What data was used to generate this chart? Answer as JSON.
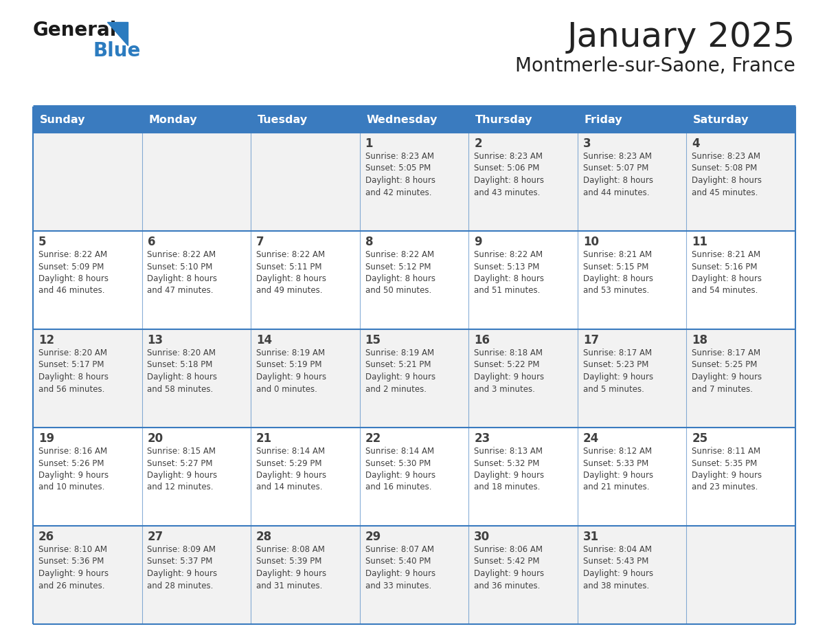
{
  "title": "January 2025",
  "subtitle": "Montmerle-sur-Saone, France",
  "days_of_week": [
    "Sunday",
    "Monday",
    "Tuesday",
    "Wednesday",
    "Thursday",
    "Friday",
    "Saturday"
  ],
  "header_bg": "#3a7bbf",
  "header_text": "#ffffff",
  "cell_bg_odd": "#f2f2f2",
  "cell_bg_even": "#ffffff",
  "line_color": "#3a7bbf",
  "text_color": "#404040",
  "title_color": "#222222",
  "logo_general_color": "#1a1a1a",
  "logo_blue_color": "#2b7bbf",
  "calendar_data": [
    [
      {
        "day": null,
        "info": null
      },
      {
        "day": null,
        "info": null
      },
      {
        "day": null,
        "info": null
      },
      {
        "day": 1,
        "info": "Sunrise: 8:23 AM\nSunset: 5:05 PM\nDaylight: 8 hours\nand 42 minutes."
      },
      {
        "day": 2,
        "info": "Sunrise: 8:23 AM\nSunset: 5:06 PM\nDaylight: 8 hours\nand 43 minutes."
      },
      {
        "day": 3,
        "info": "Sunrise: 8:23 AM\nSunset: 5:07 PM\nDaylight: 8 hours\nand 44 minutes."
      },
      {
        "day": 4,
        "info": "Sunrise: 8:23 AM\nSunset: 5:08 PM\nDaylight: 8 hours\nand 45 minutes."
      }
    ],
    [
      {
        "day": 5,
        "info": "Sunrise: 8:22 AM\nSunset: 5:09 PM\nDaylight: 8 hours\nand 46 minutes."
      },
      {
        "day": 6,
        "info": "Sunrise: 8:22 AM\nSunset: 5:10 PM\nDaylight: 8 hours\nand 47 minutes."
      },
      {
        "day": 7,
        "info": "Sunrise: 8:22 AM\nSunset: 5:11 PM\nDaylight: 8 hours\nand 49 minutes."
      },
      {
        "day": 8,
        "info": "Sunrise: 8:22 AM\nSunset: 5:12 PM\nDaylight: 8 hours\nand 50 minutes."
      },
      {
        "day": 9,
        "info": "Sunrise: 8:22 AM\nSunset: 5:13 PM\nDaylight: 8 hours\nand 51 minutes."
      },
      {
        "day": 10,
        "info": "Sunrise: 8:21 AM\nSunset: 5:15 PM\nDaylight: 8 hours\nand 53 minutes."
      },
      {
        "day": 11,
        "info": "Sunrise: 8:21 AM\nSunset: 5:16 PM\nDaylight: 8 hours\nand 54 minutes."
      }
    ],
    [
      {
        "day": 12,
        "info": "Sunrise: 8:20 AM\nSunset: 5:17 PM\nDaylight: 8 hours\nand 56 minutes."
      },
      {
        "day": 13,
        "info": "Sunrise: 8:20 AM\nSunset: 5:18 PM\nDaylight: 8 hours\nand 58 minutes."
      },
      {
        "day": 14,
        "info": "Sunrise: 8:19 AM\nSunset: 5:19 PM\nDaylight: 9 hours\nand 0 minutes."
      },
      {
        "day": 15,
        "info": "Sunrise: 8:19 AM\nSunset: 5:21 PM\nDaylight: 9 hours\nand 2 minutes."
      },
      {
        "day": 16,
        "info": "Sunrise: 8:18 AM\nSunset: 5:22 PM\nDaylight: 9 hours\nand 3 minutes."
      },
      {
        "day": 17,
        "info": "Sunrise: 8:17 AM\nSunset: 5:23 PM\nDaylight: 9 hours\nand 5 minutes."
      },
      {
        "day": 18,
        "info": "Sunrise: 8:17 AM\nSunset: 5:25 PM\nDaylight: 9 hours\nand 7 minutes."
      }
    ],
    [
      {
        "day": 19,
        "info": "Sunrise: 8:16 AM\nSunset: 5:26 PM\nDaylight: 9 hours\nand 10 minutes."
      },
      {
        "day": 20,
        "info": "Sunrise: 8:15 AM\nSunset: 5:27 PM\nDaylight: 9 hours\nand 12 minutes."
      },
      {
        "day": 21,
        "info": "Sunrise: 8:14 AM\nSunset: 5:29 PM\nDaylight: 9 hours\nand 14 minutes."
      },
      {
        "day": 22,
        "info": "Sunrise: 8:14 AM\nSunset: 5:30 PM\nDaylight: 9 hours\nand 16 minutes."
      },
      {
        "day": 23,
        "info": "Sunrise: 8:13 AM\nSunset: 5:32 PM\nDaylight: 9 hours\nand 18 minutes."
      },
      {
        "day": 24,
        "info": "Sunrise: 8:12 AM\nSunset: 5:33 PM\nDaylight: 9 hours\nand 21 minutes."
      },
      {
        "day": 25,
        "info": "Sunrise: 8:11 AM\nSunset: 5:35 PM\nDaylight: 9 hours\nand 23 minutes."
      }
    ],
    [
      {
        "day": 26,
        "info": "Sunrise: 8:10 AM\nSunset: 5:36 PM\nDaylight: 9 hours\nand 26 minutes."
      },
      {
        "day": 27,
        "info": "Sunrise: 8:09 AM\nSunset: 5:37 PM\nDaylight: 9 hours\nand 28 minutes."
      },
      {
        "day": 28,
        "info": "Sunrise: 8:08 AM\nSunset: 5:39 PM\nDaylight: 9 hours\nand 31 minutes."
      },
      {
        "day": 29,
        "info": "Sunrise: 8:07 AM\nSunset: 5:40 PM\nDaylight: 9 hours\nand 33 minutes."
      },
      {
        "day": 30,
        "info": "Sunrise: 8:06 AM\nSunset: 5:42 PM\nDaylight: 9 hours\nand 36 minutes."
      },
      {
        "day": 31,
        "info": "Sunrise: 8:04 AM\nSunset: 5:43 PM\nDaylight: 9 hours\nand 38 minutes."
      },
      {
        "day": null,
        "info": null
      }
    ]
  ],
  "fig_width": 11.88,
  "fig_height": 9.18,
  "dpi": 100
}
